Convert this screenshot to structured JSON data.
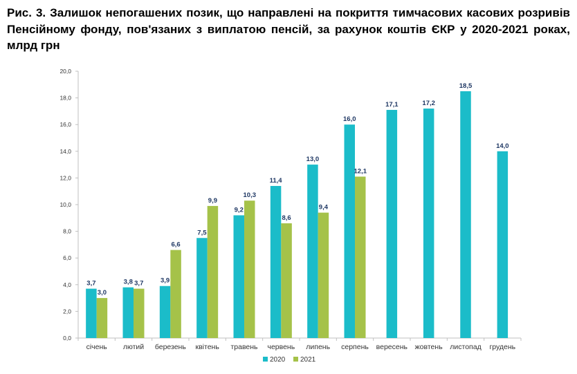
{
  "title": "Рис. 3. Залишок непогашених позик, що направлені на покриття тимчасових касових розривів Пенсійному фонду, пов'язаних з виплатою пенсій, за рахунок коштів ЄКР у 2020-2021 роках, млрд грн",
  "chart_data": {
    "type": "bar",
    "title": "Рис. 3. Залишок непогашених позик, що направлені на покриття тимчасових касових розривів Пенсійному фонду, пов'язаних з виплатою пенсій, за рахунок коштів ЄКР у 2020-2021 роках, млрд грн",
    "categories": [
      "січень",
      "лютий",
      "березень",
      "квітень",
      "травень",
      "червень",
      "липень",
      "серпень",
      "вересень",
      "жовтень",
      "листопад",
      "грудень"
    ],
    "series": [
      {
        "name": "2020",
        "color": "#1bbcc9",
        "values": [
          3.7,
          3.8,
          3.9,
          7.5,
          9.2,
          11.4,
          13.0,
          16.0,
          17.1,
          17.2,
          18.5,
          14.0
        ],
        "labels": [
          "3,7",
          "3,8",
          "3,9",
          "7,5",
          "9,2",
          "11,4",
          "13,0",
          "16,0",
          "17,1",
          "17,2",
          "18,5",
          "14,0"
        ]
      },
      {
        "name": "2021",
        "color": "#a5c249",
        "values": [
          3.0,
          3.7,
          6.6,
          9.9,
          10.3,
          8.6,
          9.4,
          12.1,
          null,
          null,
          null,
          null
        ],
        "labels": [
          "3,0",
          "3,7",
          "6,6",
          "9,9",
          "10,3",
          "8,6",
          "9,4",
          "12,1",
          "",
          "",
          "",
          ""
        ]
      }
    ],
    "ylim": [
      0,
      20
    ],
    "yticks": [
      "0,0",
      "2,0",
      "4,0",
      "6,0",
      "8,0",
      "10,0",
      "12,0",
      "14,0",
      "16,0",
      "18,0",
      "20,0"
    ],
    "label_color": "#1f3864",
    "axis_color": "#bfbfbf",
    "grid": false,
    "legend": "bottom-center"
  }
}
